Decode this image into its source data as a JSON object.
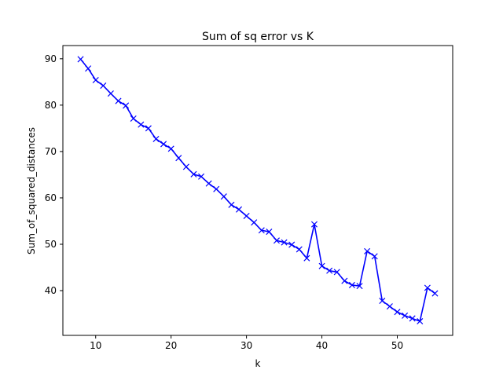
{
  "chart_data": {
    "type": "line",
    "title": "Sum of sq error vs K",
    "xlabel": "k",
    "ylabel": "Sum_of_squared_distances",
    "xlim": [
      5.65,
      57.35
    ],
    "ylim": [
      30.35,
      92.85
    ],
    "xticks": [
      10,
      20,
      30,
      40,
      50
    ],
    "yticks": [
      40,
      50,
      60,
      70,
      80,
      90
    ],
    "grid": false,
    "legend": "none",
    "series": [
      {
        "color": "#0000ff",
        "marker": "x",
        "x": [
          8,
          9,
          10,
          11,
          12,
          13,
          14,
          15,
          16,
          17,
          18,
          19,
          20,
          21,
          22,
          23,
          24,
          25,
          26,
          27,
          28,
          29,
          30,
          31,
          32,
          33,
          34,
          35,
          36,
          37,
          38,
          39,
          40,
          41,
          42,
          43,
          44,
          45,
          46,
          47,
          48,
          49,
          50,
          51,
          52,
          53,
          54,
          55
        ],
        "values": [
          89.9,
          87.9,
          85.4,
          84.2,
          82.5,
          80.9,
          79.9,
          77.1,
          75.8,
          75.0,
          72.7,
          71.6,
          70.6,
          68.6,
          66.7,
          65.1,
          64.6,
          63.1,
          61.9,
          60.3,
          58.5,
          57.5,
          56.1,
          54.7,
          53.0,
          52.7,
          50.8,
          50.4,
          49.9,
          48.9,
          47.0,
          54.3,
          45.3,
          44.3,
          44.0,
          42.1,
          41.2,
          41.0,
          48.5,
          47.4,
          37.8,
          36.6,
          35.4,
          34.6,
          34.0,
          33.4,
          40.6,
          39.4
        ]
      }
    ]
  }
}
